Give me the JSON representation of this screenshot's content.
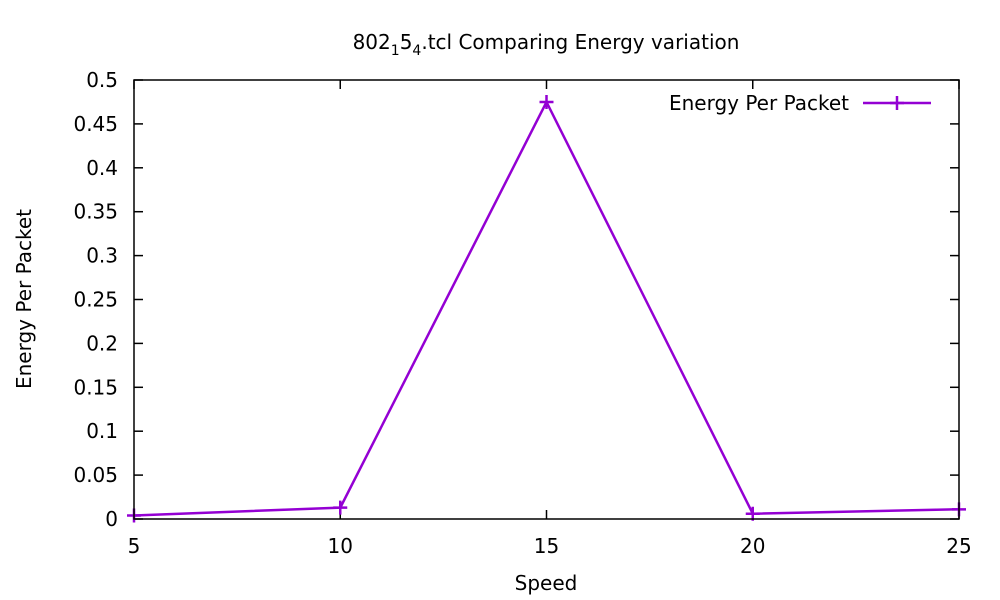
{
  "chart_data": {
    "type": "line",
    "title": {
      "prefix": "802",
      "sub1": "1",
      "middle": "5",
      "sub2": "4",
      "suffix": ".tcl Comparing Energy variation"
    },
    "xlabel": "Speed",
    "ylabel": "Energy Per Packet",
    "xlim": [
      5,
      25
    ],
    "ylim": [
      0,
      0.5
    ],
    "x_ticks": [
      "5",
      "10",
      "15",
      "20",
      "25"
    ],
    "y_ticks": [
      "0",
      "0.05",
      "0.1",
      "0.15",
      "0.2",
      "0.25",
      "0.3",
      "0.35",
      "0.4",
      "0.45",
      "0.5"
    ],
    "grid": false,
    "legend_position": "top-right",
    "series": [
      {
        "name": "Energy Per Packet",
        "color": "#9400D3",
        "marker": "plus",
        "x": [
          5,
          10,
          15,
          20,
          25
        ],
        "y": [
          0.004,
          0.013,
          0.475,
          0.006,
          0.011
        ]
      }
    ]
  }
}
